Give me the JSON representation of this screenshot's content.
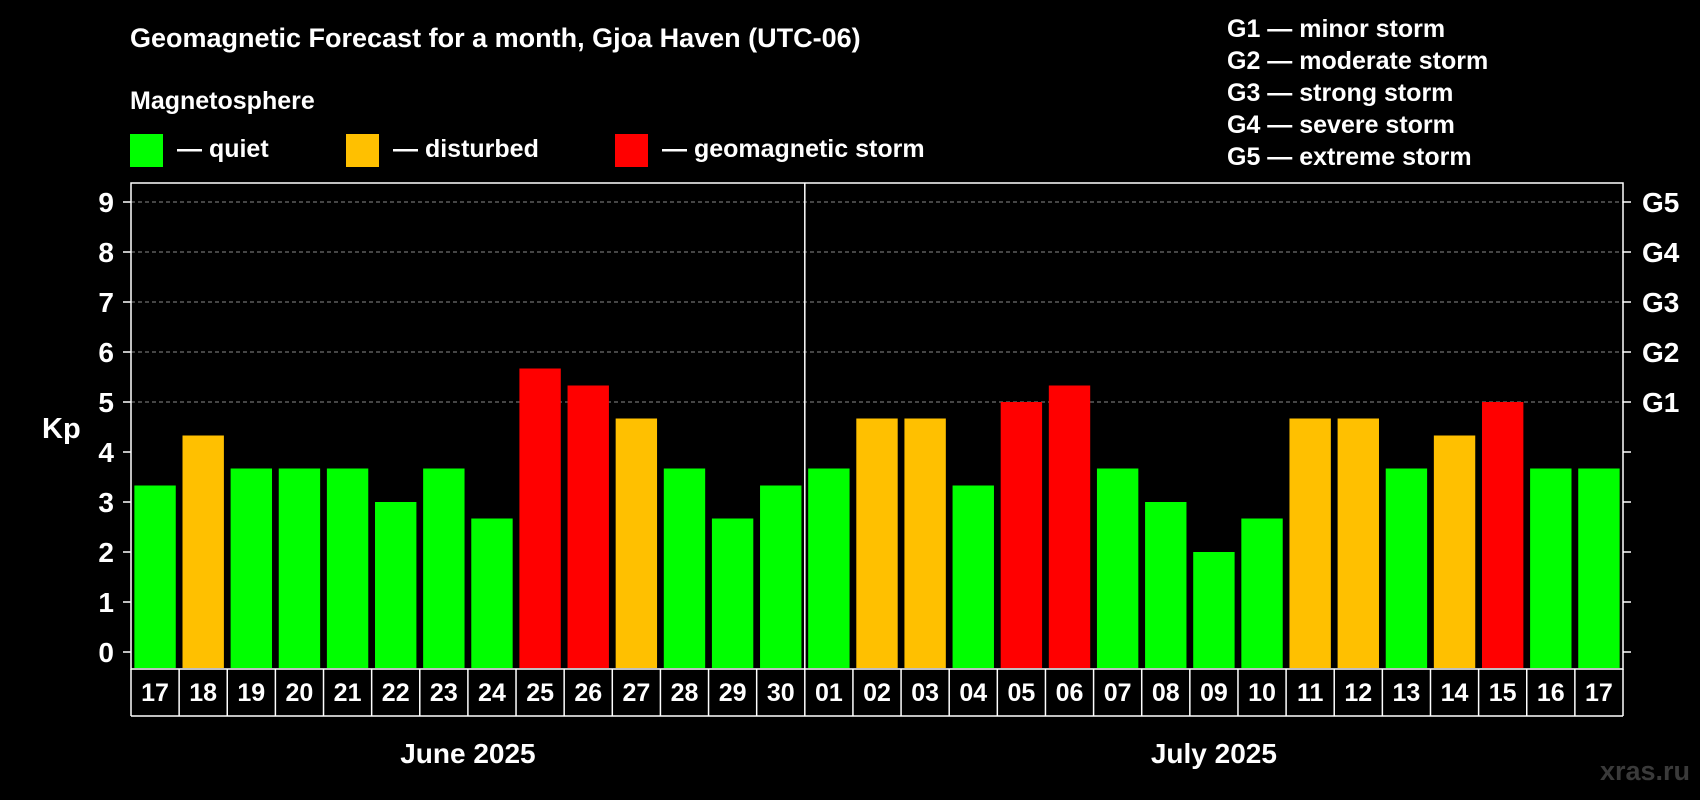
{
  "chart_data": {
    "type": "bar",
    "title": "Geomagnetic Forecast for a month, Gjoa Haven (UTC-06)",
    "legend_title": "Magnetosphere",
    "legend": [
      {
        "label": "— quiet",
        "color": "#00ff00",
        "status": "quiet"
      },
      {
        "label": "— disturbed",
        "color": "#ffc000",
        "status": "disturbed"
      },
      {
        "label": "— geomagnetic storm",
        "color": "#ff0000",
        "status": "storm"
      }
    ],
    "g_scale": [
      "G1 — minor storm",
      "G2 — moderate storm",
      "G3 — strong storm",
      "G4 — severe storm",
      "G5 — extreme storm"
    ],
    "ylabel": "Kp",
    "ylim": [
      0,
      9
    ],
    "y_ticks": [
      "0",
      "1",
      "2",
      "3",
      "4",
      "5",
      "6",
      "7",
      "8",
      "9"
    ],
    "g_ticks": [
      {
        "kp": 5,
        "label": "G1"
      },
      {
        "kp": 6,
        "label": "G2"
      },
      {
        "kp": 7,
        "label": "G3"
      },
      {
        "kp": 8,
        "label": "G4"
      },
      {
        "kp": 9,
        "label": "G5"
      }
    ],
    "grid_from_kp": 5,
    "categories": [
      "17",
      "18",
      "19",
      "20",
      "21",
      "22",
      "23",
      "24",
      "25",
      "26",
      "27",
      "28",
      "29",
      "30",
      "01",
      "02",
      "03",
      "04",
      "05",
      "06",
      "07",
      "08",
      "09",
      "10",
      "11",
      "12",
      "13",
      "14",
      "15",
      "16",
      "17"
    ],
    "values": [
      3.33,
      4.33,
      3.67,
      3.67,
      3.67,
      3.0,
      3.67,
      2.67,
      5.67,
      5.33,
      4.67,
      3.67,
      2.67,
      3.33,
      3.67,
      4.67,
      4.67,
      3.33,
      5.0,
      5.33,
      3.67,
      3.0,
      2.0,
      2.67,
      4.67,
      4.67,
      3.67,
      4.33,
      5.0,
      3.67,
      3.67
    ],
    "status": [
      "quiet",
      "disturbed",
      "quiet",
      "quiet",
      "quiet",
      "quiet",
      "quiet",
      "quiet",
      "storm",
      "storm",
      "disturbed",
      "quiet",
      "quiet",
      "quiet",
      "quiet",
      "disturbed",
      "disturbed",
      "quiet",
      "storm",
      "storm",
      "quiet",
      "quiet",
      "quiet",
      "quiet",
      "disturbed",
      "disturbed",
      "quiet",
      "disturbed",
      "storm",
      "quiet",
      "quiet"
    ],
    "months": [
      {
        "label": "June 2025",
        "start_index": 0,
        "end_index": 13
      },
      {
        "label": "July 2025",
        "start_index": 14,
        "end_index": 30
      }
    ],
    "watermark": "xras.ru"
  }
}
